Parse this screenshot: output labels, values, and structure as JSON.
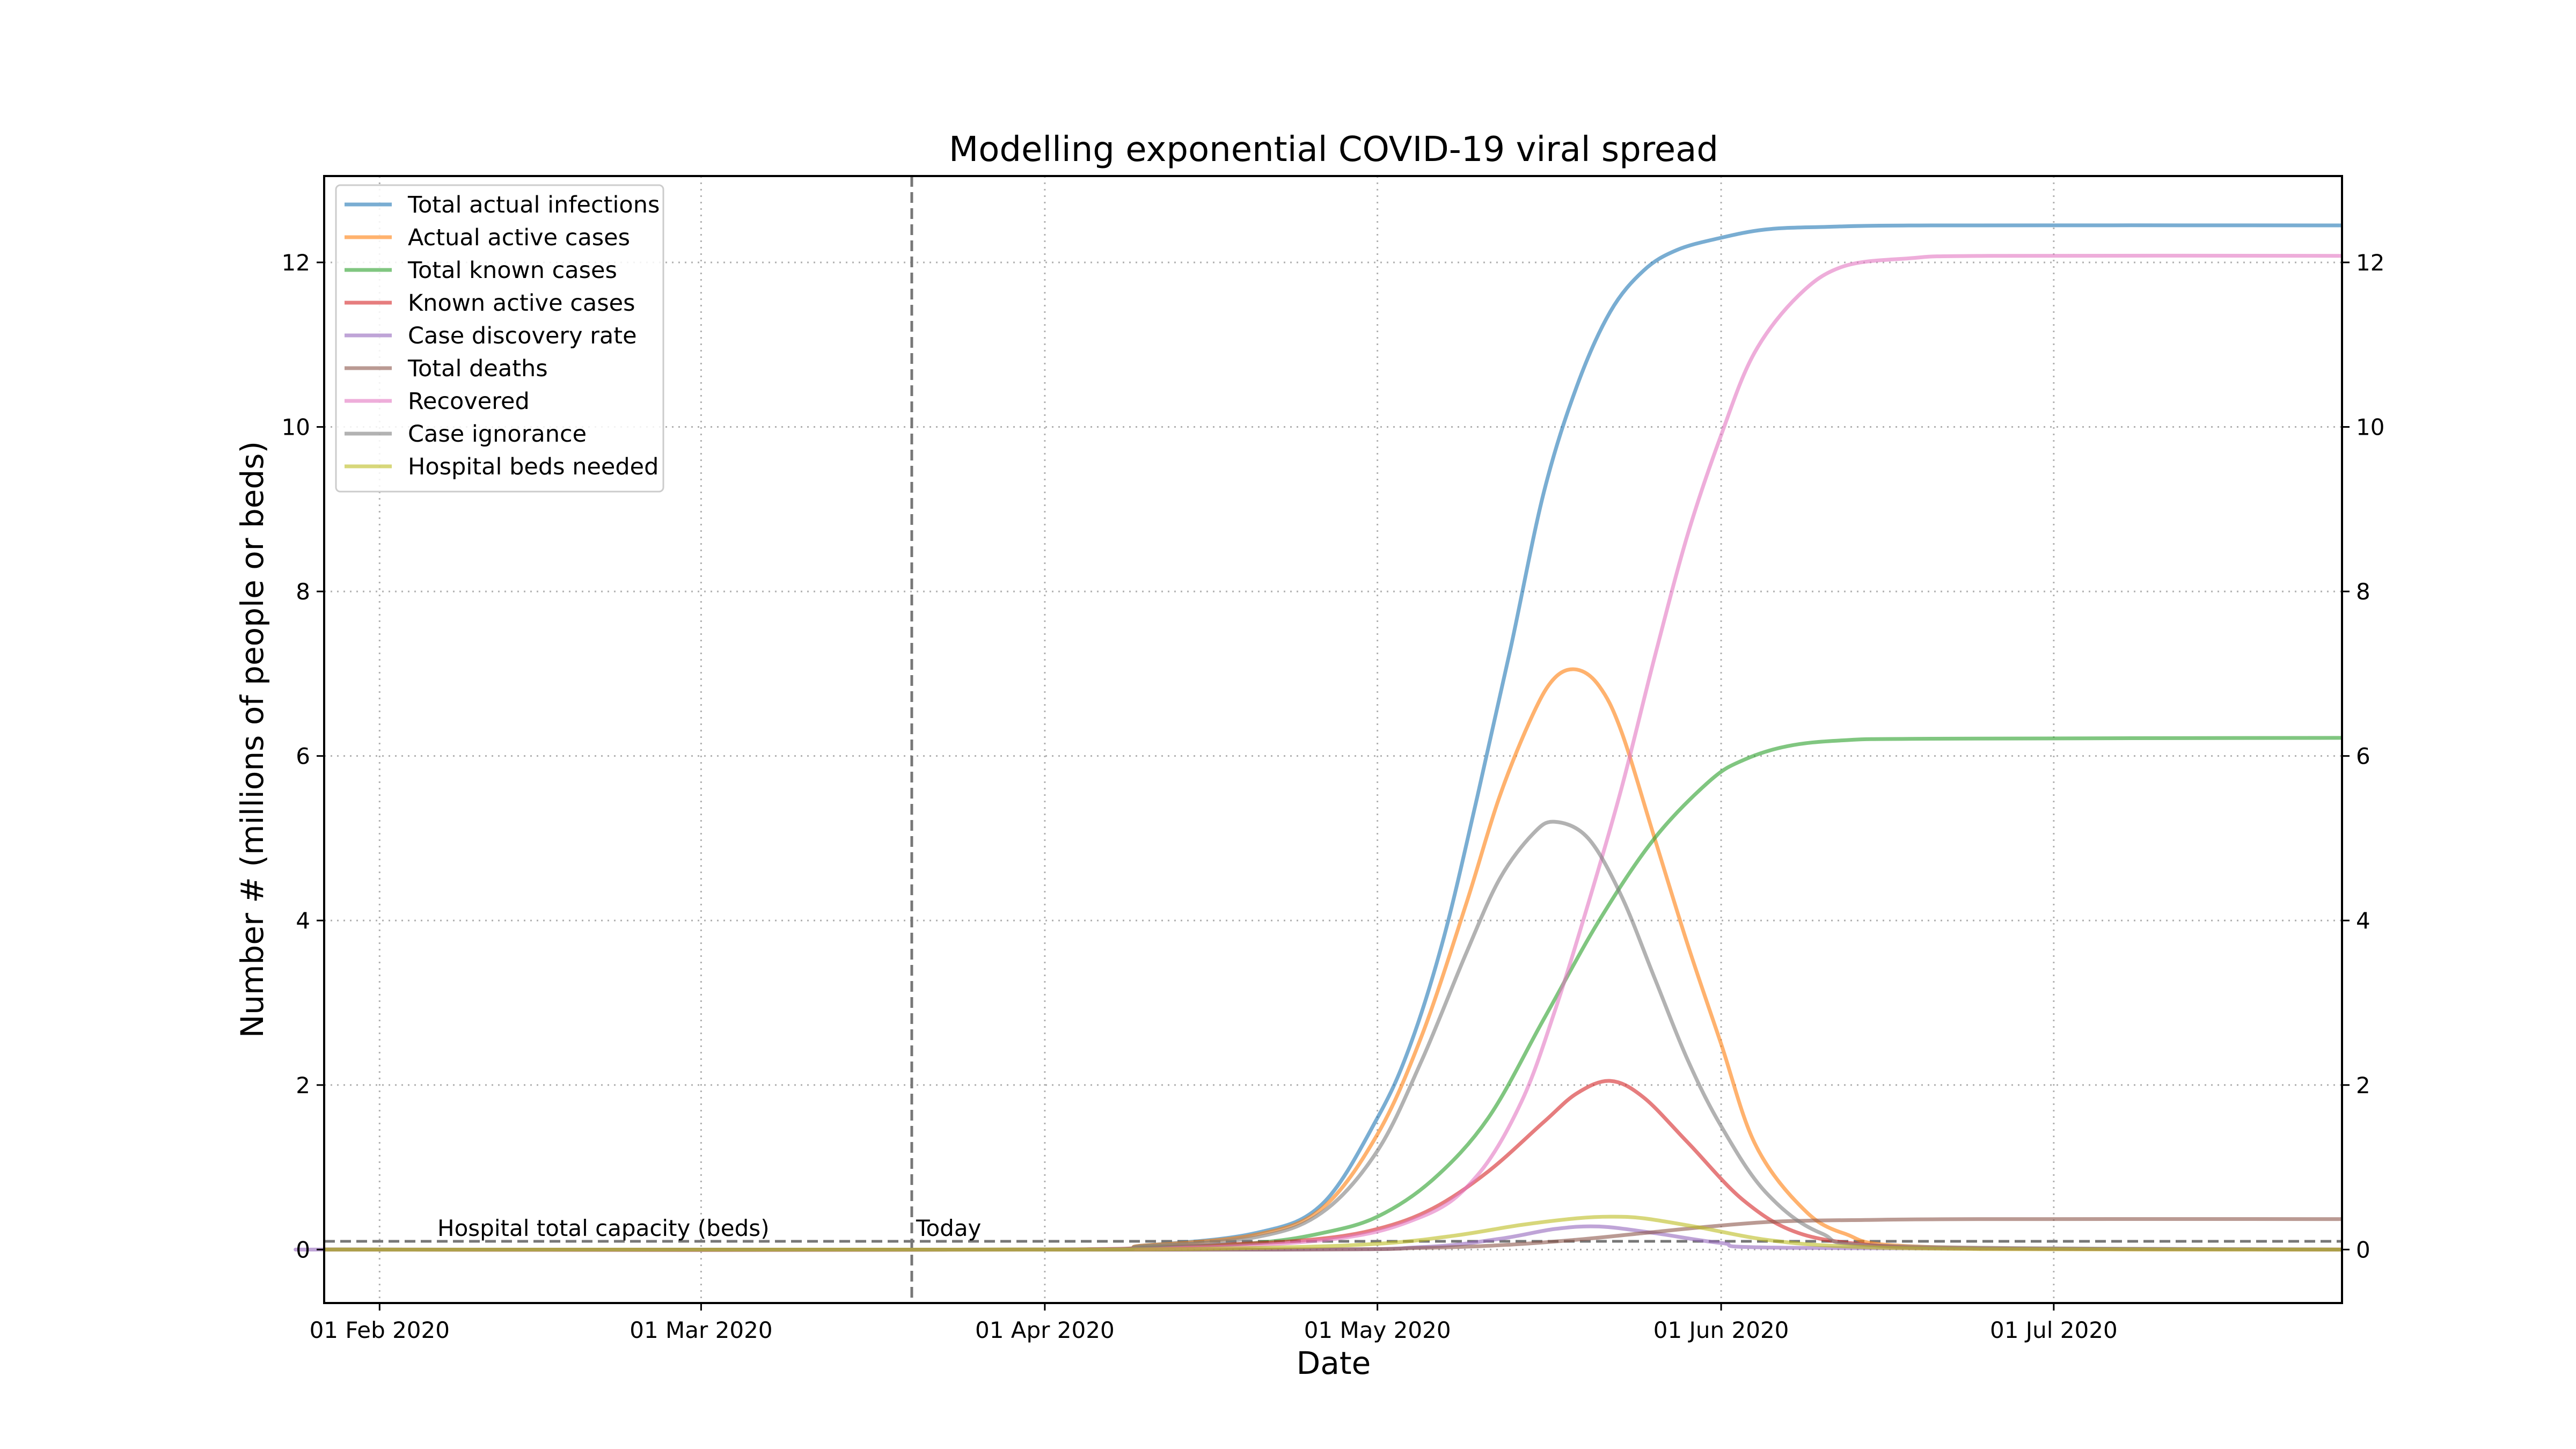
{
  "chart_data": {
    "type": "line",
    "title": "Modelling exponential COVID-19 viral spread",
    "xlabel": "Date",
    "ylabel": "Number # (millions of people or beds)",
    "x_type": "date",
    "xlim": [
      "2020-01-27",
      "2020-07-27"
    ],
    "ylim": [
      -0.65,
      13.05
    ],
    "x_ticks": [
      {
        "date": "2020-02-01",
        "label": "01 Feb 2020"
      },
      {
        "date": "2020-03-01",
        "label": "01 Mar 2020"
      },
      {
        "date": "2020-04-01",
        "label": "01 Apr 2020"
      },
      {
        "date": "2020-05-01",
        "label": "01 May 2020"
      },
      {
        "date": "2020-06-01",
        "label": "01 Jun 2020"
      },
      {
        "date": "2020-07-01",
        "label": "01 Jul 2020"
      }
    ],
    "y_ticks": [
      0,
      2,
      4,
      6,
      8,
      10,
      12
    ],
    "y_tick_labels": [
      "0",
      "2",
      "4",
      "6",
      "8",
      "10",
      "12"
    ],
    "grid": true,
    "right_axis_ticks": true,
    "legend_position": "upper-left",
    "reference_lines": [
      {
        "orientation": "horizontal",
        "y": 0.1,
        "label": "Hospital total capacity (beds)",
        "style": "dashed",
        "color": "#777777"
      },
      {
        "orientation": "vertical",
        "date": "2020-03-20",
        "label": "Today",
        "style": "dashed",
        "color": "#777777"
      }
    ],
    "series": [
      {
        "name": "Total actual infections",
        "color": "#1f77b4",
        "x": [
          "2020-04-01",
          "2020-04-10",
          "2020-04-20",
          "2020-04-26",
          "2020-05-01",
          "2020-05-04",
          "2020-05-07",
          "2020-05-10",
          "2020-05-13",
          "2020-05-16",
          "2020-05-19",
          "2020-05-22",
          "2020-05-25",
          "2020-05-28",
          "2020-06-01",
          "2020-06-05",
          "2020-06-10",
          "2020-06-20",
          "2020-07-27"
        ],
        "y": [
          0.0,
          0.05,
          0.2,
          0.55,
          1.6,
          2.5,
          3.8,
          5.5,
          7.3,
          9.2,
          10.5,
          11.4,
          11.9,
          12.15,
          12.3,
          12.4,
          12.43,
          12.45,
          12.45
        ]
      },
      {
        "name": "Actual active cases",
        "color": "#ff7f0e",
        "x": [
          "2020-04-01",
          "2020-04-10",
          "2020-04-20",
          "2020-04-26",
          "2020-05-01",
          "2020-05-05",
          "2020-05-09",
          "2020-05-12",
          "2020-05-15",
          "2020-05-17",
          "2020-05-19",
          "2020-05-21",
          "2020-05-23",
          "2020-05-26",
          "2020-05-29",
          "2020-06-01",
          "2020-06-04",
          "2020-06-08",
          "2020-06-12",
          "2020-06-20",
          "2020-07-27"
        ],
        "y": [
          0.0,
          0.05,
          0.18,
          0.5,
          1.4,
          2.6,
          4.2,
          5.5,
          6.5,
          6.95,
          7.05,
          6.85,
          6.3,
          5.0,
          3.7,
          2.5,
          1.3,
          0.55,
          0.2,
          0.03,
          0.0
        ]
      },
      {
        "name": "Total known cases",
        "color": "#2ca02c",
        "x": [
          "2020-04-01",
          "2020-04-10",
          "2020-04-20",
          "2020-04-26",
          "2020-05-01",
          "2020-05-06",
          "2020-05-11",
          "2020-05-16",
          "2020-05-21",
          "2020-05-26",
          "2020-05-31",
          "2020-06-03",
          "2020-06-07",
          "2020-06-12",
          "2020-06-20",
          "2020-07-27"
        ],
        "y": [
          0.0,
          0.02,
          0.08,
          0.2,
          0.4,
          0.85,
          1.6,
          2.8,
          4.0,
          5.0,
          5.7,
          5.95,
          6.12,
          6.19,
          6.21,
          6.22
        ]
      },
      {
        "name": "Known active cases",
        "color": "#d62728",
        "x": [
          "2020-04-01",
          "2020-04-15",
          "2020-04-25",
          "2020-05-01",
          "2020-05-06",
          "2020-05-11",
          "2020-05-16",
          "2020-05-19",
          "2020-05-22",
          "2020-05-25",
          "2020-05-29",
          "2020-06-03",
          "2020-06-08",
          "2020-06-15",
          "2020-06-25",
          "2020-07-27"
        ],
        "y": [
          0.0,
          0.05,
          0.12,
          0.25,
          0.5,
          0.95,
          1.55,
          1.9,
          2.05,
          1.85,
          1.3,
          0.6,
          0.2,
          0.05,
          0.01,
          0.0
        ]
      },
      {
        "name": "Case discovery rate",
        "color": "#9467bd",
        "x": [
          "2020-02-01",
          "2020-04-20",
          "2020-05-05",
          "2020-05-12",
          "2020-05-17",
          "2020-05-21",
          "2020-05-26",
          "2020-06-01",
          "2020-06-08",
          "2020-07-27"
        ],
        "y": [
          0.0,
          0.0,
          0.03,
          0.13,
          0.25,
          0.28,
          0.2,
          0.08,
          0.02,
          0.0
        ]
      },
      {
        "name": "Total deaths",
        "color": "#8c564b",
        "x": [
          "2020-04-20",
          "2020-05-05",
          "2020-05-13",
          "2020-05-19",
          "2020-05-25",
          "2020-05-31",
          "2020-06-06",
          "2020-06-14",
          "2020-06-25",
          "2020-07-27"
        ],
        "y": [
          0.0,
          0.02,
          0.06,
          0.12,
          0.2,
          0.28,
          0.34,
          0.36,
          0.37,
          0.37
        ]
      },
      {
        "name": "Recovered",
        "color": "#e377c2",
        "x": [
          "2020-04-01",
          "2020-04-25",
          "2020-05-05",
          "2020-05-10",
          "2020-05-14",
          "2020-05-17",
          "2020-05-20",
          "2020-05-23",
          "2020-05-26",
          "2020-05-29",
          "2020-06-01",
          "2020-06-04",
          "2020-06-08",
          "2020-06-12",
          "2020-06-18",
          "2020-06-25",
          "2020-07-27"
        ],
        "y": [
          0.0,
          0.1,
          0.4,
          0.9,
          1.8,
          2.9,
          4.2,
          5.6,
          7.2,
          8.7,
          9.9,
          10.9,
          11.6,
          11.95,
          12.05,
          12.08,
          12.08
        ]
      },
      {
        "name": "Case ignorance",
        "color": "#7f7f7f",
        "x": [
          "2020-04-01",
          "2020-04-10",
          "2020-04-20",
          "2020-04-26",
          "2020-05-01",
          "2020-05-05",
          "2020-05-09",
          "2020-05-12",
          "2020-05-15",
          "2020-05-17",
          "2020-05-20",
          "2020-05-23",
          "2020-05-26",
          "2020-05-29",
          "2020-06-01",
          "2020-06-05",
          "2020-06-10",
          "2020-06-17",
          "2020-07-27"
        ],
        "y": [
          0.0,
          0.04,
          0.15,
          0.45,
          1.2,
          2.3,
          3.6,
          4.5,
          5.05,
          5.2,
          5.0,
          4.3,
          3.3,
          2.3,
          1.5,
          0.7,
          0.2,
          0.04,
          0.0
        ]
      },
      {
        "name": "Hospital beds needed",
        "color": "#bcbd22",
        "x": [
          "2020-04-01",
          "2020-04-20",
          "2020-05-01",
          "2020-05-08",
          "2020-05-14",
          "2020-05-19",
          "2020-05-22",
          "2020-05-25",
          "2020-05-30",
          "2020-06-05",
          "2020-06-12",
          "2020-06-25",
          "2020-07-27"
        ],
        "y": [
          0.0,
          0.02,
          0.07,
          0.17,
          0.3,
          0.38,
          0.4,
          0.38,
          0.27,
          0.12,
          0.04,
          0.005,
          0.0
        ]
      }
    ]
  }
}
